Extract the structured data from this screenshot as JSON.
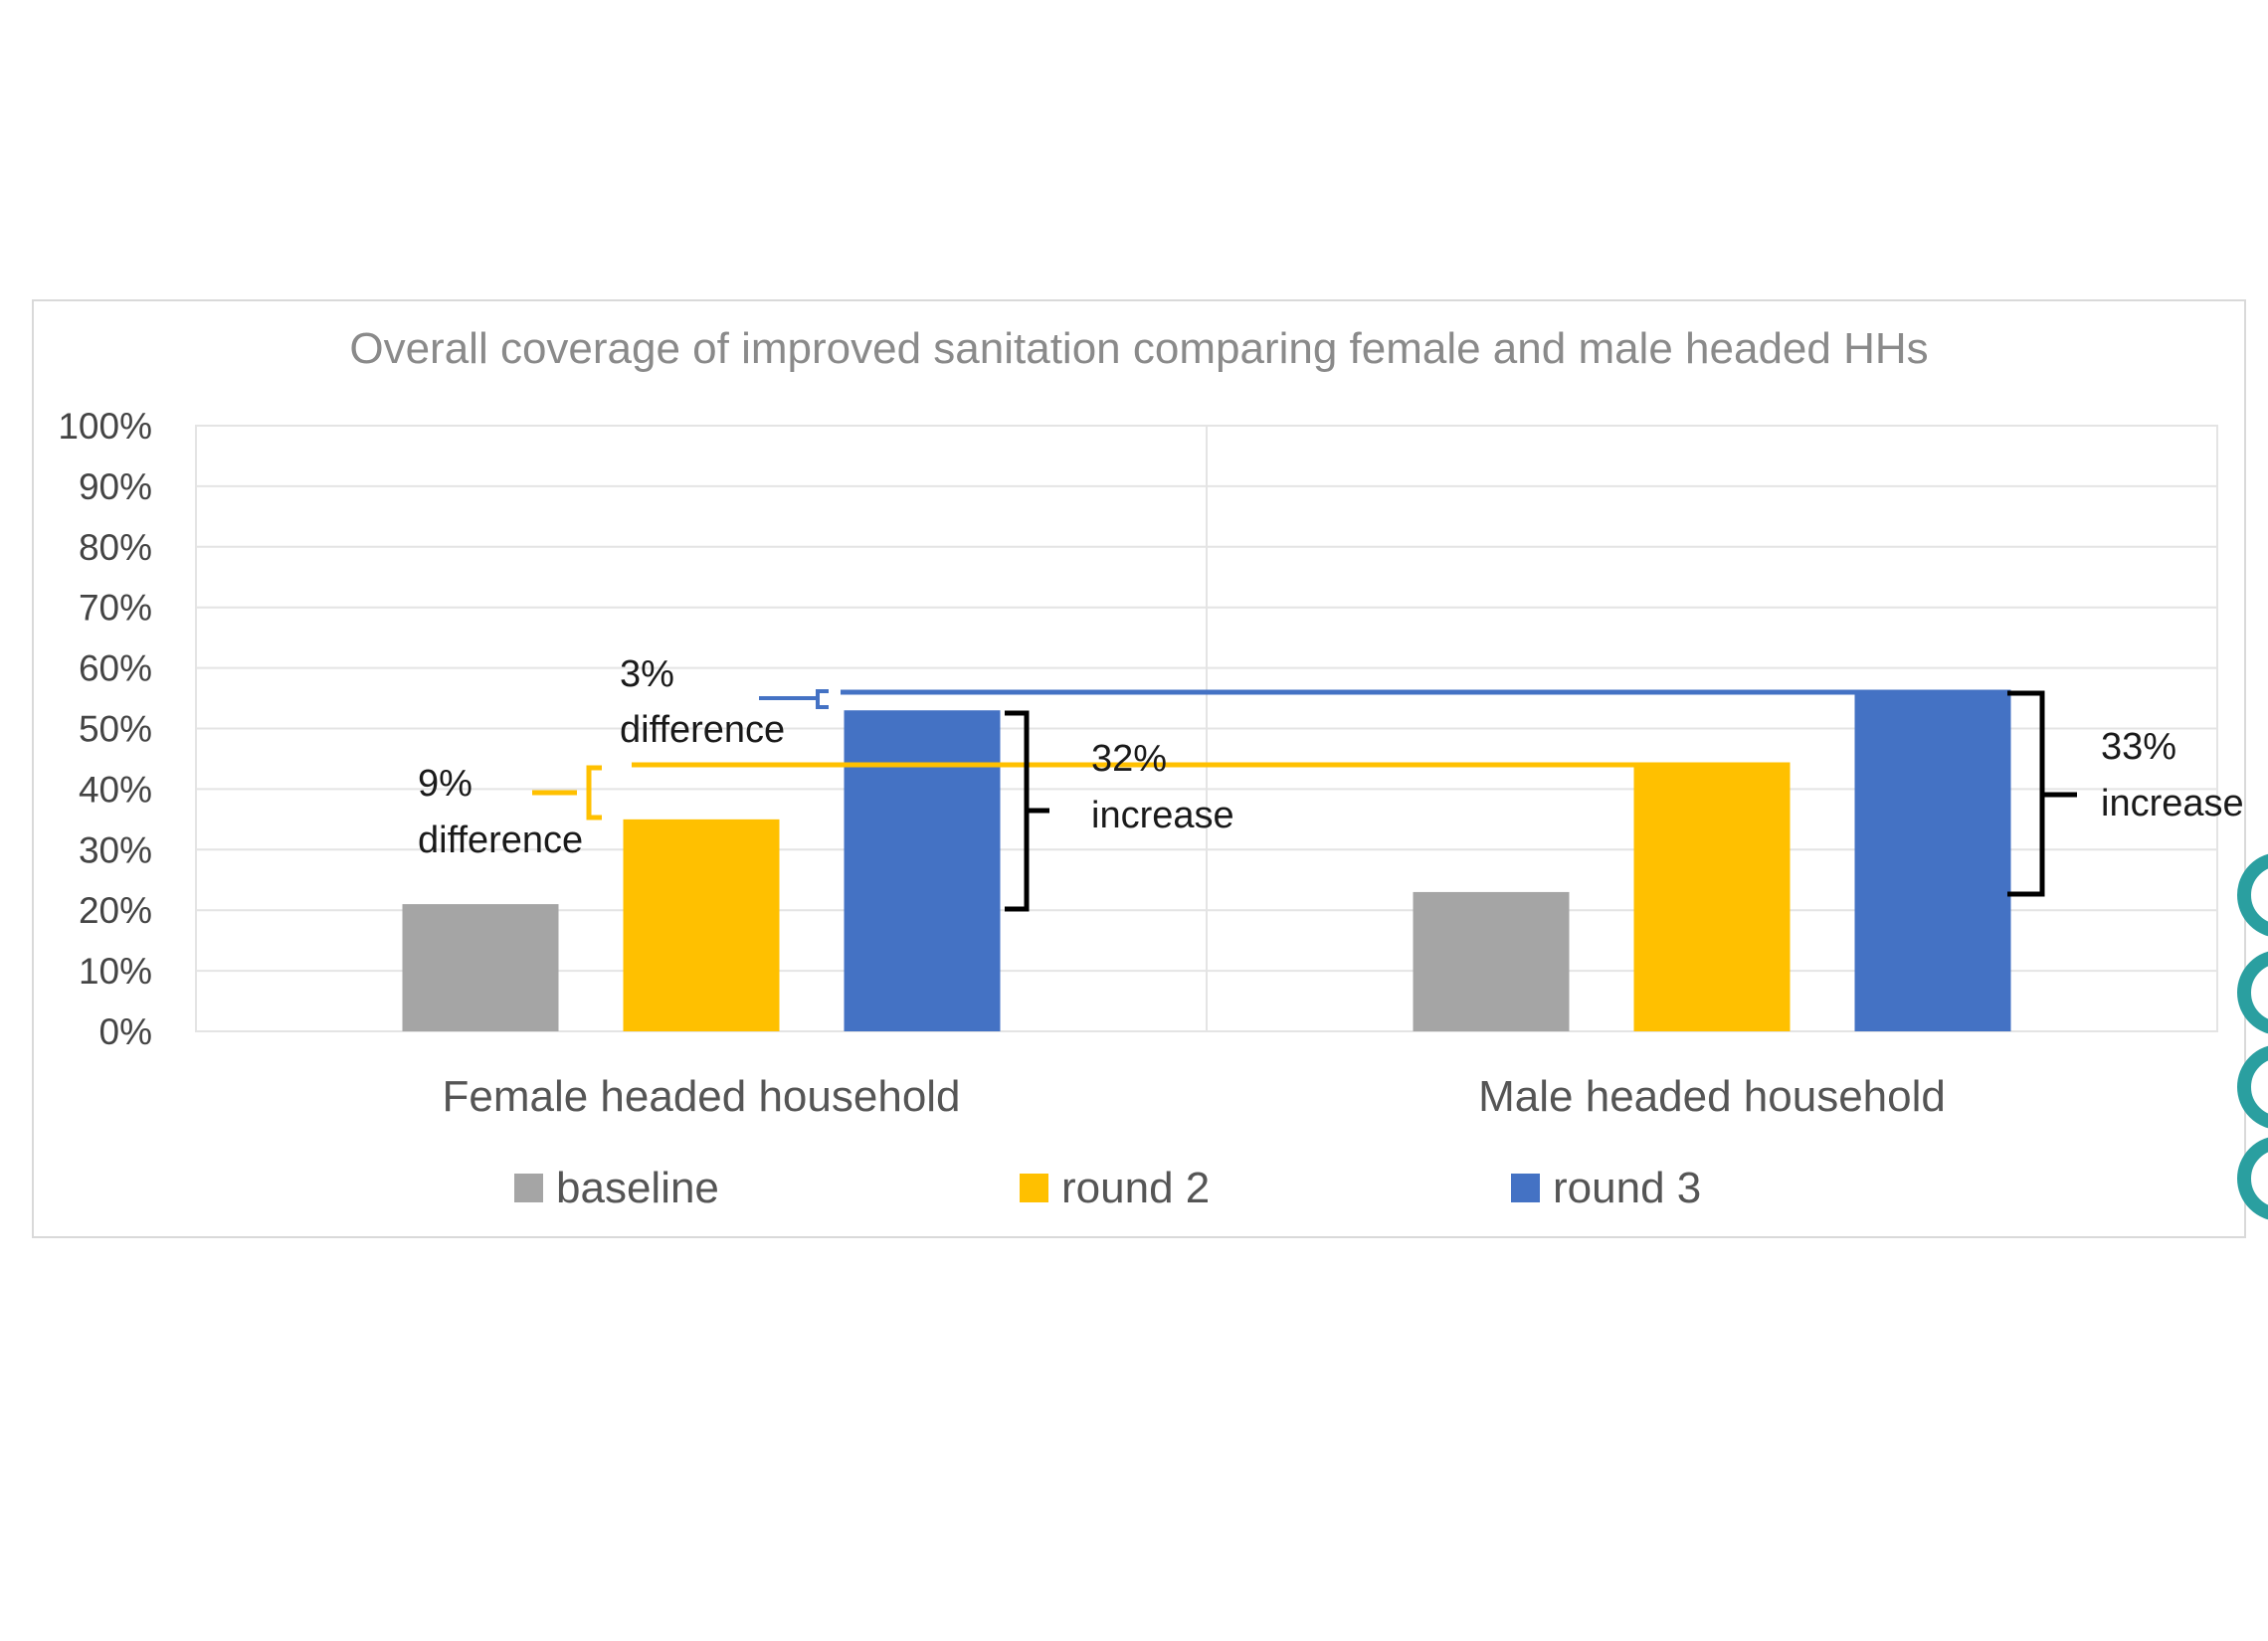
{
  "chart_data": {
    "type": "bar",
    "title": "Overall coverage of improved sanitation comparing female and male headed HHs",
    "categories": [
      "Female headed household",
      "Male headed household"
    ],
    "series": [
      {
        "name": "baseline",
        "color": "#A5A5A5",
        "values": [
          21,
          23
        ]
      },
      {
        "name": "round 2",
        "color": "#FFC000",
        "values": [
          35,
          44
        ]
      },
      {
        "name": "round 3",
        "color": "#4472C4",
        "values": [
          53,
          56
        ]
      }
    ],
    "ylim": [
      0,
      100
    ],
    "yticks": [
      "0%",
      "10%",
      "20%",
      "30%",
      "40%",
      "50%",
      "60%",
      "70%",
      "80%",
      "90%",
      "100%"
    ],
    "xlabel": "",
    "ylabel": "",
    "grid": true,
    "legend": "bottom",
    "annotations": [
      {
        "id": "diff-round3",
        "line1": "3%",
        "line2": "difference",
        "color": "#4472C4"
      },
      {
        "id": "diff-round2",
        "line1": "9%",
        "line2": "difference",
        "color": "#FFC000"
      },
      {
        "id": "inc-female",
        "line1": "32%",
        "line2": "increase",
        "color": "#000000"
      },
      {
        "id": "inc-male",
        "line1": "33%",
        "line2": "increase",
        "color": "#000000"
      }
    ]
  }
}
